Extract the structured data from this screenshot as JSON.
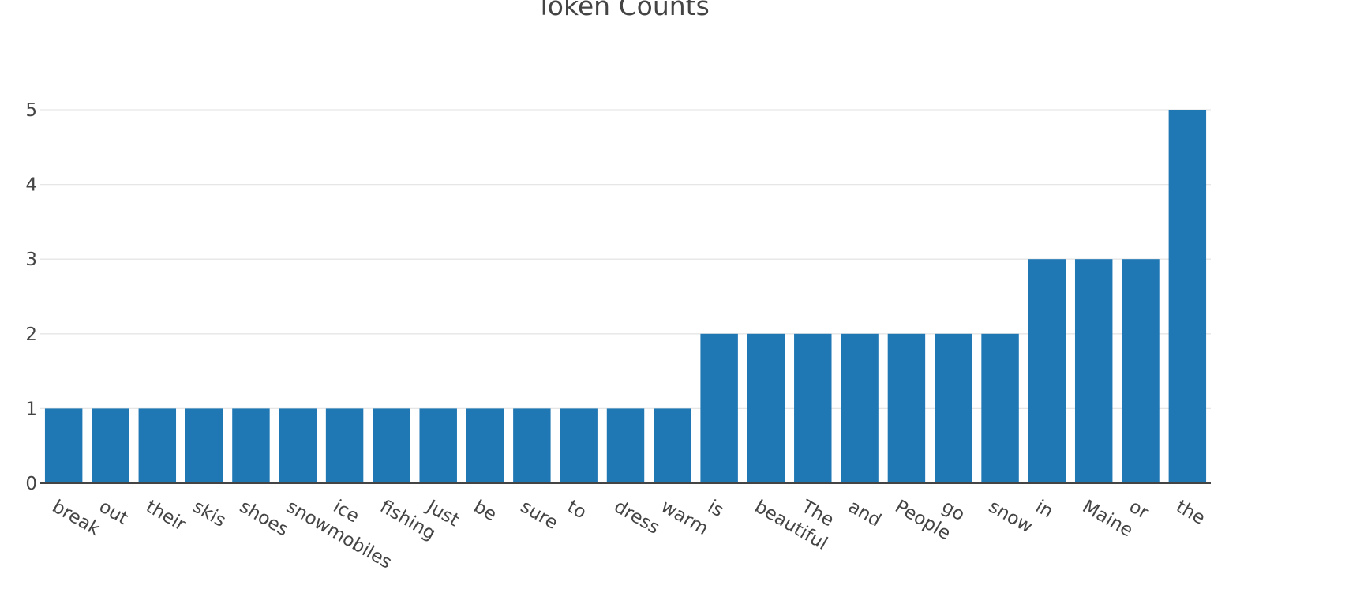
{
  "chart_data": {
    "type": "bar",
    "title": "Token Counts",
    "xlabel": "",
    "ylabel": "",
    "categories": [
      "break",
      "out",
      "their",
      "skis",
      "shoes",
      "snowmobiles",
      "ice",
      "fishing",
      "Just",
      "be",
      "sure",
      "to",
      "dress",
      "warm",
      "is",
      "beautiful",
      "The",
      "and",
      "People",
      "go",
      "snow",
      "in",
      "Maine",
      "or",
      "the"
    ],
    "values": [
      1,
      1,
      1,
      1,
      1,
      1,
      1,
      1,
      1,
      1,
      1,
      1,
      1,
      1,
      2,
      2,
      2,
      2,
      2,
      2,
      2,
      3,
      3,
      3,
      5
    ],
    "ylim": [
      0,
      5
    ],
    "y_ticks": [
      0,
      1,
      2,
      3,
      4,
      5
    ],
    "grid": true,
    "legend": "none",
    "bar_color": "#1f77b4"
  }
}
